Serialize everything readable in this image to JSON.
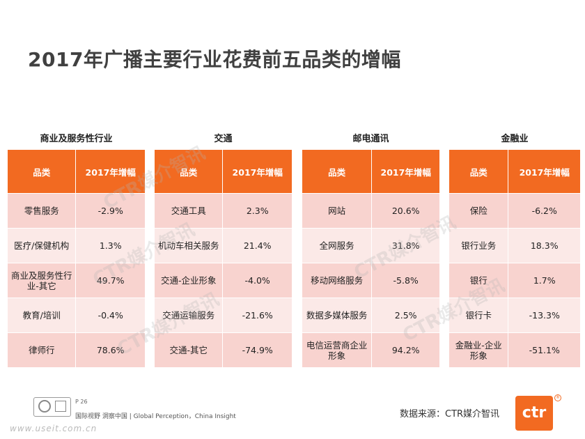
{
  "title": "2017年广播主要行业花费前五品类的增幅",
  "header": {
    "category": "品类",
    "growth": "2017年增幅"
  },
  "panels": [
    {
      "title": "商业及服务性行业",
      "rows": [
        {
          "category": "零售服务",
          "value": "-2.9%"
        },
        {
          "category": "医疗/保健机构",
          "value": "1.3%"
        },
        {
          "category": "商业及服务性行业-其它",
          "value": "49.7%"
        },
        {
          "category": "教育/培训",
          "value": "-0.4%"
        },
        {
          "category": "律师行",
          "value": "78.6%"
        }
      ]
    },
    {
      "title": "交通",
      "rows": [
        {
          "category": "交通工具",
          "value": "2.3%"
        },
        {
          "category": "机动车相关服务",
          "value": "21.4%"
        },
        {
          "category": "交通-企业形象",
          "value": "-4.0%"
        },
        {
          "category": "交通运输服务",
          "value": "-21.6%"
        },
        {
          "category": "交通-其它",
          "value": "-74.9%"
        }
      ]
    },
    {
      "title": "邮电通讯",
      "rows": [
        {
          "category": "网站",
          "value": "20.6%"
        },
        {
          "category": "全网服务",
          "value": "31.8%"
        },
        {
          "category": "移动网络服务",
          "value": "-5.8%"
        },
        {
          "category": "数据多媒体服务",
          "value": "2.5%"
        },
        {
          "category": "电信运营商企业形象",
          "value": "94.2%"
        }
      ]
    },
    {
      "title": "金融业",
      "rows": [
        {
          "category": "保险",
          "value": "-6.2%"
        },
        {
          "category": "银行业务",
          "value": "18.3%"
        },
        {
          "category": "银行",
          "value": "1.7%"
        },
        {
          "category": "银行卡",
          "value": "-13.3%"
        },
        {
          "category": "金融业-企业形象",
          "value": "-51.1%"
        }
      ]
    }
  ],
  "watermark": "CTR媒介智讯",
  "footer": {
    "page": "P 26",
    "tagline": "国际视野  洞察中国 | Global Perception，China Insight",
    "url": "www.useit.com.cn",
    "source": "数据来源：CTR媒介智讯",
    "logo_text": "ctr",
    "reg_mark": "®"
  },
  "colors": {
    "header": "#f26a21",
    "row_odd": "#f8d3cf",
    "row_even": "#fbe9e7",
    "title": "#404040"
  }
}
